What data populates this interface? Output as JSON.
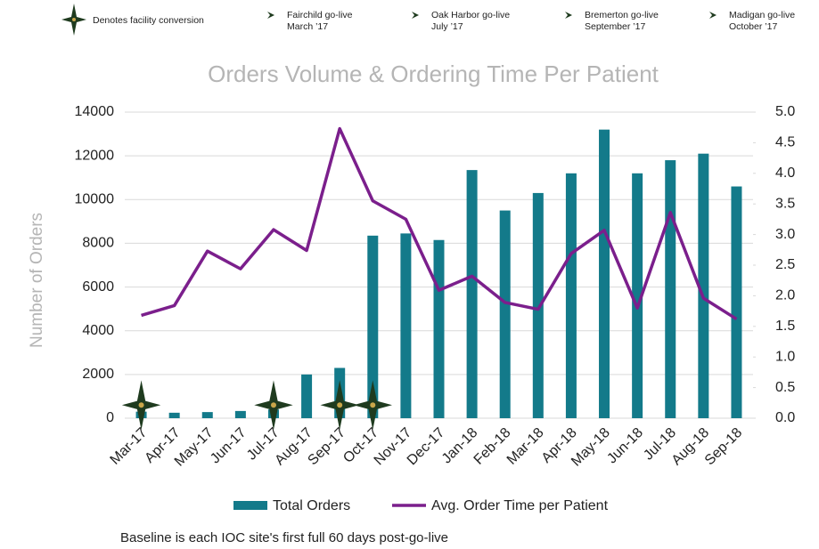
{
  "chart_data": {
    "type": "bar_line",
    "title": "Orders Volume & Ordering Time Per Patient",
    "y_label": "Number of Orders",
    "footnote": "Baseline is each IOC site's first full 60 days post-go-live",
    "header_items": [
      {
        "line1": "Fairchild go-live",
        "line2": "March ’17"
      },
      {
        "line1": "Oak Harbor go-live",
        "line2": "July ’17"
      },
      {
        "line1": "Bremerton go-live",
        "line2": "September ’17"
      },
      {
        "line1": "Madigan go-live",
        "line2": "October ’17"
      }
    ],
    "categories": [
      "Mar-17",
      "Apr-17",
      "May-17",
      "Jun-17",
      "Jul-17",
      "Aug-17",
      "Sep-17",
      "Oct-17",
      "Nov-17",
      "Dec-17",
      "Jan-18",
      "Feb-18",
      "Mar-18",
      "Apr-18",
      "May-18",
      "Jun-18",
      "Jul-18",
      "Aug-18",
      "Sep-18"
    ],
    "series": [
      {
        "name": "Total Orders",
        "color": "#137a8a",
        "kind": "bar",
        "values": [
          300,
          250,
          280,
          330,
          400,
          2000,
          2300,
          8350,
          8450,
          8150,
          11350,
          9500,
          10300,
          11200,
          13200,
          11200,
          11800,
          12100,
          10600
        ]
      },
      {
        "name": "Avg. Order Time per Patient",
        "color": "#7b1f8c",
        "kind": "line",
        "axis": "y2",
        "values": [
          1.68,
          1.84,
          2.73,
          2.44,
          3.08,
          2.74,
          4.73,
          3.55,
          3.25,
          2.09,
          2.32,
          1.89,
          1.78,
          2.69,
          3.07,
          1.8,
          3.36,
          1.96,
          1.62
        ]
      },
      {
        "name": "Denotes facility conversion",
        "color": "#1f3b1f",
        "kind": "marker",
        "values": [
          600,
          null,
          null,
          null,
          600,
          null,
          600,
          600,
          null,
          null,
          null,
          null,
          null,
          null,
          null,
          null,
          null,
          null,
          null
        ]
      }
    ],
    "ylim": [
      0,
      14000
    ],
    "yticks": [
      0,
      2000,
      4000,
      6000,
      8000,
      10000,
      12000,
      14000
    ],
    "y2lim": [
      0,
      5
    ],
    "y2ticks": [
      {
        "value": 0,
        "label": "0.0"
      },
      {
        "value": 0.5,
        "label": "0.5"
      },
      {
        "value": 1,
        "label": "1.0"
      },
      {
        "value": 1.5,
        "label": "1.5"
      },
      {
        "value": 2,
        "label": "2.0"
      },
      {
        "value": 2.5,
        "label": "2.5"
      },
      {
        "value": 3,
        "label": "3.0"
      },
      {
        "value": 3.5,
        "label": "3.5"
      },
      {
        "value": 4,
        "label": "4.0"
      },
      {
        "value": 4.5,
        "label": "4.5"
      },
      {
        "value": 5,
        "label": "5.0"
      }
    ],
    "grid": true
  }
}
